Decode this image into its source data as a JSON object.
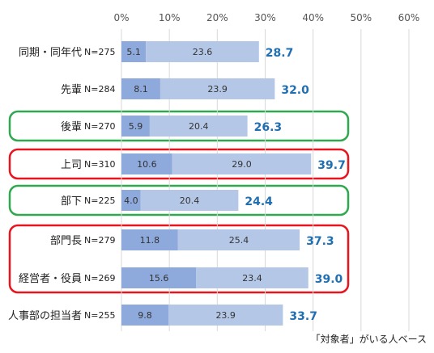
{
  "chart_data": {
    "type": "bar",
    "orientation": "horizontal",
    "stacked": true,
    "xlim": [
      0,
      60
    ],
    "x_ticks": [
      "0%",
      "10%",
      "20%",
      "30%",
      "40%",
      "50%",
      "60%"
    ],
    "grid": true,
    "categories": [
      "同期・同年代",
      "先輩",
      "後輩",
      "上司",
      "部下",
      "部門長",
      "経営者・役員",
      "人事部の担当者"
    ],
    "n_labels": [
      "N=275",
      "N=284",
      "N=270",
      "N=310",
      "N=225",
      "N=279",
      "N=269",
      "N=255"
    ],
    "series": [
      {
        "values": [
          5.1,
          8.1,
          5.9,
          10.6,
          4.0,
          11.8,
          15.6,
          9.8
        ],
        "labels": [
          "5.1",
          "8.1",
          "5.9",
          "10.6",
          "4.0",
          "11.8",
          "15.6",
          "9.8"
        ]
      },
      {
        "values": [
          23.6,
          23.9,
          20.4,
          29.0,
          20.4,
          25.4,
          23.4,
          23.9
        ],
        "labels": [
          "23.6",
          "23.9",
          "20.4",
          "29.0",
          "20.4",
          "25.4",
          "23.4",
          "23.9"
        ]
      }
    ],
    "totals": [
      "28.7",
      "32.0",
      "26.3",
      "39.7",
      "24.4",
      "37.3",
      "39.0",
      "33.7"
    ],
    "colors": {
      "dark": "#8EA9DB",
      "light": "#B4C7E7",
      "total_text": "#1F6FB2",
      "green": "#2FA84F",
      "red": "#E8141E",
      "grid": "#D9D9D9"
    },
    "highlights": [
      {
        "color": "green",
        "rows": [
          2
        ]
      },
      {
        "color": "red",
        "rows": [
          3
        ]
      },
      {
        "color": "green",
        "rows": [
          4
        ]
      },
      {
        "color": "red",
        "rows": [
          5,
          6
        ]
      }
    ],
    "footnote": "「対象者」がいる人ベース"
  }
}
